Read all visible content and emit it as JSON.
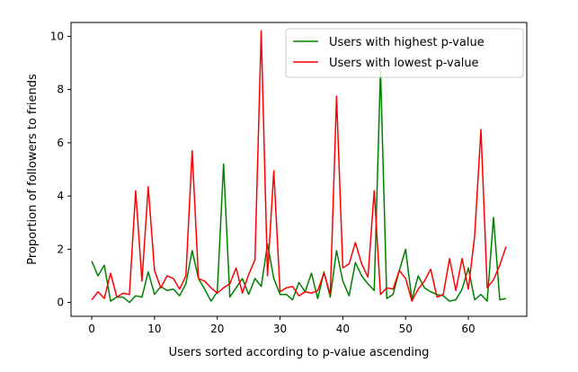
{
  "chart_data": {
    "type": "line",
    "title": "",
    "xlabel": "Users sorted according to p-value ascending",
    "ylabel": "Proportion of followers to friends",
    "xlim": [
      -3.3,
      69.3
    ],
    "ylim": [
      -0.52,
      10.52
    ],
    "xticks": [
      0,
      10,
      20,
      30,
      40,
      50,
      60
    ],
    "yticks": [
      0,
      2,
      4,
      6,
      8,
      10
    ],
    "grid": false,
    "legend_position": "upper right",
    "x": [
      0,
      1,
      2,
      3,
      4,
      5,
      6,
      7,
      8,
      9,
      10,
      11,
      12,
      13,
      14,
      15,
      16,
      17,
      18,
      19,
      20,
      21,
      22,
      23,
      24,
      25,
      26,
      27,
      28,
      29,
      30,
      31,
      32,
      33,
      34,
      35,
      36,
      37,
      38,
      39,
      40,
      41,
      42,
      43,
      44,
      45,
      46,
      47,
      48,
      49,
      50,
      51,
      52,
      53,
      54,
      55,
      56,
      57,
      58,
      59,
      60,
      61,
      62,
      63,
      64,
      65,
      66
    ],
    "series": [
      {
        "name": "Users with highest p-value",
        "color": "#008000",
        "values": [
          1.55,
          1.0,
          1.4,
          0.05,
          0.2,
          0.2,
          0.0,
          0.25,
          0.2,
          1.15,
          0.3,
          0.6,
          0.45,
          0.5,
          0.25,
          0.7,
          1.95,
          0.9,
          0.5,
          0.05,
          0.4,
          5.2,
          0.2,
          0.55,
          0.9,
          0.3,
          0.9,
          0.6,
          2.2,
          0.9,
          0.3,
          0.3,
          0.1,
          0.75,
          0.4,
          1.1,
          0.15,
          1.15,
          0.2,
          1.95,
          0.8,
          0.25,
          1.5,
          1.0,
          0.7,
          0.45,
          8.75,
          0.15,
          0.3,
          1.2,
          2.0,
          0.1,
          1.0,
          0.55,
          0.4,
          0.3,
          0.25,
          0.05,
          0.1,
          0.5,
          1.3,
          0.1,
          0.3,
          0.05,
          3.2,
          0.1,
          0.15
        ]
      },
      {
        "name": "Users with lowest p-value",
        "color": "#ff0000",
        "values": [
          0.1,
          0.4,
          0.15,
          1.1,
          0.2,
          0.35,
          0.3,
          4.2,
          0.8,
          4.35,
          1.2,
          0.55,
          1.0,
          0.9,
          0.5,
          1.0,
          5.7,
          0.9,
          0.8,
          0.55,
          0.35,
          0.55,
          0.7,
          1.3,
          0.35,
          1.05,
          1.6,
          10.2,
          1.0,
          4.95,
          0.4,
          0.55,
          0.6,
          0.25,
          0.4,
          0.35,
          0.45,
          1.1,
          0.3,
          7.75,
          1.3,
          1.45,
          2.25,
          1.45,
          0.95,
          4.2,
          0.3,
          0.55,
          0.5,
          1.2,
          0.9,
          0.05,
          0.5,
          0.8,
          1.25,
          0.2,
          0.3,
          1.65,
          0.45,
          1.65,
          0.5,
          2.5,
          6.5,
          0.55,
          0.85,
          1.4,
          2.1
        ]
      }
    ]
  }
}
